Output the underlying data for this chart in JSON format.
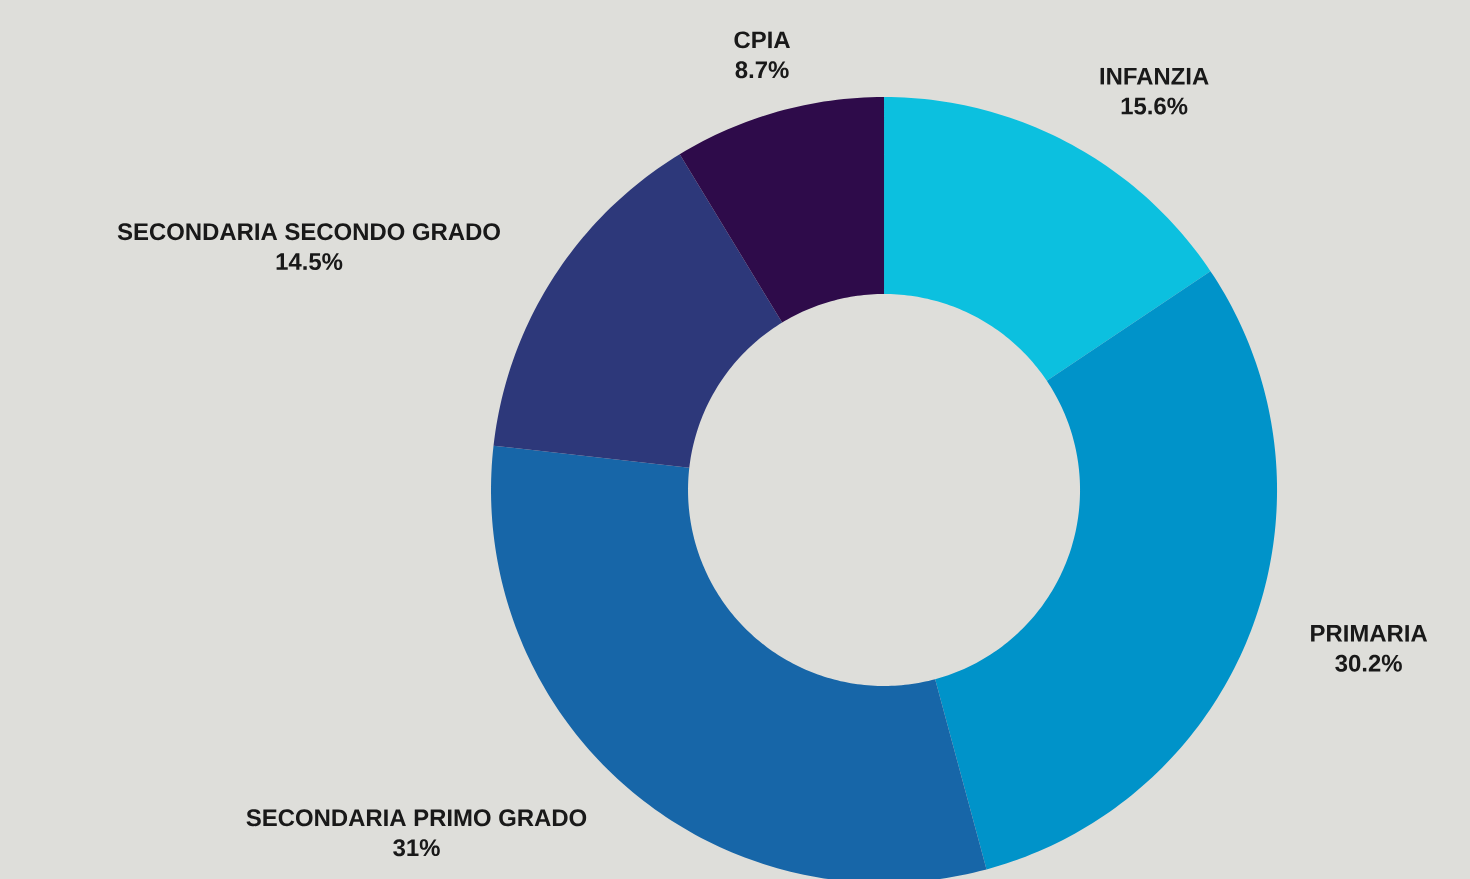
{
  "chart_data": {
    "type": "donut",
    "categories": [
      "INFANZIA",
      "PRIMARIA",
      "SECONDARIA PRIMO GRADO",
      "SECONDARIA SECONDO GRADO",
      "CPIA"
    ],
    "values": [
      15.6,
      30.2,
      31,
      14.5,
      8.7
    ],
    "value_labels": [
      "15.6%",
      "30.2%",
      "31%",
      "14.5%",
      "8.7%"
    ],
    "colors": [
      "#0cc0df",
      "#0093c9",
      "#1766a8",
      "#2d387a",
      "#2e0b4a"
    ]
  }
}
